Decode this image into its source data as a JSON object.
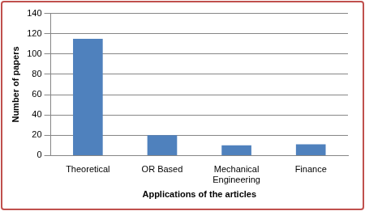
{
  "chart_data": {
    "type": "bar",
    "categories": [
      "Theoretical",
      "OR Based",
      "Mechanical Engineering",
      "Finance"
    ],
    "values": [
      115,
      20,
      10,
      11
    ],
    "color": "#4f81bd",
    "x_label": "Applications of the articles",
    "y_label": "Number of papers",
    "ylim": [
      0,
      140
    ],
    "yticks": [
      0,
      20,
      40,
      60,
      80,
      100,
      120,
      140
    ],
    "grid": true
  }
}
